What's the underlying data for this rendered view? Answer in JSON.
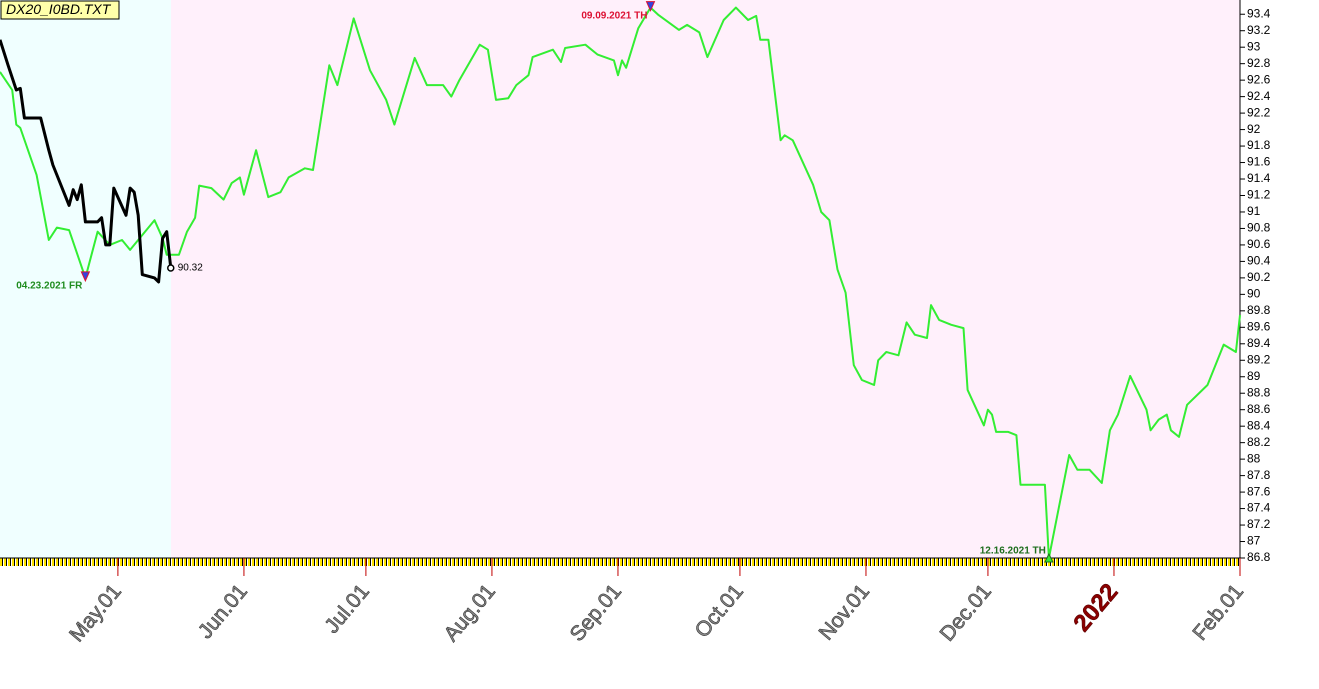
{
  "chart_data": {
    "type": "line",
    "title": "DX20_I0BD.TXT",
    "xlim": [
      "2021-04-02",
      "2022-02-01"
    ],
    "xticks": [
      {
        "value": "2021-05-01",
        "label": "May.01"
      },
      {
        "value": "2021-06-01",
        "label": "Jun.01"
      },
      {
        "value": "2021-07-01",
        "label": "Jul.01"
      },
      {
        "value": "2021-08-01",
        "label": "Aug.01"
      },
      {
        "value": "2021-09-01",
        "label": "Sep.01"
      },
      {
        "value": "2021-10-01",
        "label": "Oct.01"
      },
      {
        "value": "2021-11-01",
        "label": "Nov.01"
      },
      {
        "value": "2021-12-01",
        "label": "Dec.01"
      },
      {
        "value": "2022-01-01",
        "label": "2022"
      },
      {
        "value": "2022-02-01",
        "label": "Feb.01"
      }
    ],
    "ylim": [
      86.8,
      93.5
    ],
    "yticks": [
      86.8,
      87,
      87.2,
      87.4,
      87.6,
      87.8,
      88,
      88.2,
      88.4,
      88.6,
      88.8,
      89,
      89.2,
      89.4,
      89.6,
      89.8,
      90,
      90.2,
      90.4,
      90.6,
      90.8,
      91,
      91.2,
      91.4,
      91.6,
      91.8,
      92,
      92.2,
      92.4,
      92.6,
      92.8,
      93,
      93.2,
      93.4
    ],
    "series": [
      {
        "color": "#33ee33",
        "x": [
          "2021-04-02",
          "2021-04-05",
          "2021-04-06",
          "2021-04-07",
          "2021-04-11",
          "2021-04-14",
          "2021-04-16",
          "2021-04-19",
          "2021-04-23",
          "2021-04-26",
          "2021-04-29",
          "2021-05-02",
          "2021-05-04",
          "2021-05-06",
          "2021-05-10",
          "2021-05-12",
          "2021-05-13",
          "2021-05-16",
          "2021-05-18",
          "2021-05-20",
          "2021-05-21",
          "2021-05-24",
          "2021-05-27",
          "2021-05-29",
          "2021-05-31",
          "2021-06-01",
          "2021-06-04",
          "2021-06-07",
          "2021-06-10",
          "2021-06-12",
          "2021-06-16",
          "2021-06-18",
          "2021-06-22",
          "2021-06-24",
          "2021-06-28",
          "2021-07-02",
          "2021-07-06",
          "2021-07-08",
          "2021-07-13",
          "2021-07-16",
          "2021-07-20",
          "2021-07-22",
          "2021-07-24",
          "2021-07-29",
          "2021-07-31",
          "2021-08-02",
          "2021-08-05",
          "2021-08-07",
          "2021-08-10",
          "2021-08-11",
          "2021-08-16",
          "2021-08-18",
          "2021-08-19",
          "2021-08-24",
          "2021-08-27",
          "2021-08-31",
          "2021-09-01",
          "2021-09-02",
          "2021-09-03",
          "2021-09-06",
          "2021-09-09",
          "2021-09-11",
          "2021-09-16",
          "2021-09-18",
          "2021-09-21",
          "2021-09-23",
          "2021-09-27",
          "2021-09-30",
          "2021-10-03",
          "2021-10-05",
          "2021-10-06",
          "2021-10-08",
          "2021-10-11",
          "2021-10-12",
          "2021-10-14",
          "2021-10-19",
          "2021-10-21",
          "2021-10-23",
          "2021-10-25",
          "2021-10-27",
          "2021-10-29",
          "2021-10-31",
          "2021-11-03",
          "2021-11-04",
          "2021-11-06",
          "2021-11-09",
          "2021-11-11",
          "2021-11-13",
          "2021-11-16",
          "2021-11-17",
          "2021-11-19",
          "2021-11-22",
          "2021-11-25",
          "2021-11-26",
          "2021-11-30",
          "2021-12-01",
          "2021-12-02",
          "2021-12-03",
          "2021-12-06",
          "2021-12-08",
          "2021-12-09",
          "2021-12-15",
          "2021-12-16",
          "2021-12-21",
          "2021-12-23",
          "2021-12-26",
          "2021-12-29",
          "2021-12-31",
          "2022-01-02",
          "2022-01-05",
          "2022-01-09",
          "2022-01-10",
          "2022-01-12",
          "2022-01-14",
          "2022-01-15",
          "2022-01-17",
          "2022-01-19",
          "2022-01-24",
          "2022-01-28",
          "2022-01-31",
          "2022-02-01"
        ],
        "values": [
          92.7,
          92.48,
          92.06,
          92.02,
          91.45,
          90.66,
          90.81,
          90.78,
          90.2,
          90.76,
          90.6,
          90.66,
          90.54,
          90.66,
          90.9,
          90.68,
          90.48,
          90.48,
          90.76,
          90.93,
          91.32,
          91.29,
          91.15,
          91.35,
          91.42,
          91.21,
          91.75,
          91.18,
          91.24,
          91.42,
          91.53,
          91.51,
          92.78,
          92.54,
          93.35,
          92.72,
          92.36,
          92.06,
          92.87,
          92.54,
          92.54,
          92.4,
          92.6,
          93.03,
          92.97,
          92.36,
          92.38,
          92.54,
          92.66,
          92.88,
          92.97,
          92.82,
          92.99,
          93.03,
          92.91,
          92.84,
          92.66,
          92.84,
          92.75,
          93.23,
          93.48,
          93.39,
          93.21,
          93.27,
          93.18,
          92.88,
          93.33,
          93.48,
          93.33,
          93.38,
          93.09,
          93.09,
          91.87,
          91.93,
          91.87,
          91.33,
          91.0,
          90.9,
          90.3,
          90.02,
          89.14,
          88.96,
          88.9,
          89.2,
          89.3,
          89.26,
          89.66,
          89.51,
          89.47,
          89.87,
          89.69,
          89.63,
          89.59,
          88.84,
          88.41,
          88.6,
          88.54,
          88.33,
          88.33,
          88.29,
          87.69,
          87.69,
          86.8,
          88.05,
          87.87,
          87.87,
          87.71,
          88.35,
          88.54,
          89.01,
          88.6,
          88.35,
          88.48,
          88.54,
          88.35,
          88.27,
          88.66,
          88.9,
          89.39,
          89.3,
          89.75
        ]
      },
      {
        "color": "#000000",
        "x": [
          "2021-04-02",
          "2021-04-04",
          "2021-04-06",
          "2021-04-07",
          "2021-04-08",
          "2021-04-12",
          "2021-04-14",
          "2021-04-15",
          "2021-04-19",
          "2021-04-20",
          "2021-04-21",
          "2021-04-22",
          "2021-04-23",
          "2021-04-26",
          "2021-04-27",
          "2021-04-28",
          "2021-04-29",
          "2021-04-30",
          "2021-05-03",
          "2021-05-04",
          "2021-05-05",
          "2021-05-06",
          "2021-05-07",
          "2021-05-10",
          "2021-05-11",
          "2021-05-12",
          "2021-05-13",
          "2021-05-14"
        ],
        "values": [
          93.09,
          92.78,
          92.48,
          92.5,
          92.14,
          92.14,
          91.75,
          91.57,
          91.08,
          91.27,
          91.15,
          91.33,
          90.88,
          90.88,
          90.93,
          90.6,
          90.6,
          91.29,
          90.96,
          91.29,
          91.24,
          90.96,
          90.24,
          90.2,
          90.15,
          90.68,
          90.76,
          90.32
        ]
      }
    ],
    "annotations": [
      {
        "text": "04.23.2021 FR",
        "x": "2021-04-23",
        "color": "#1e8c1e"
      },
      {
        "text": "09.09.2021 TH",
        "x": "2021-09-09",
        "color": "#dd1133"
      },
      {
        "text": "12.16.2021 TH",
        "x": "2021-12-16",
        "color": "#1e6e1e"
      }
    ]
  }
}
